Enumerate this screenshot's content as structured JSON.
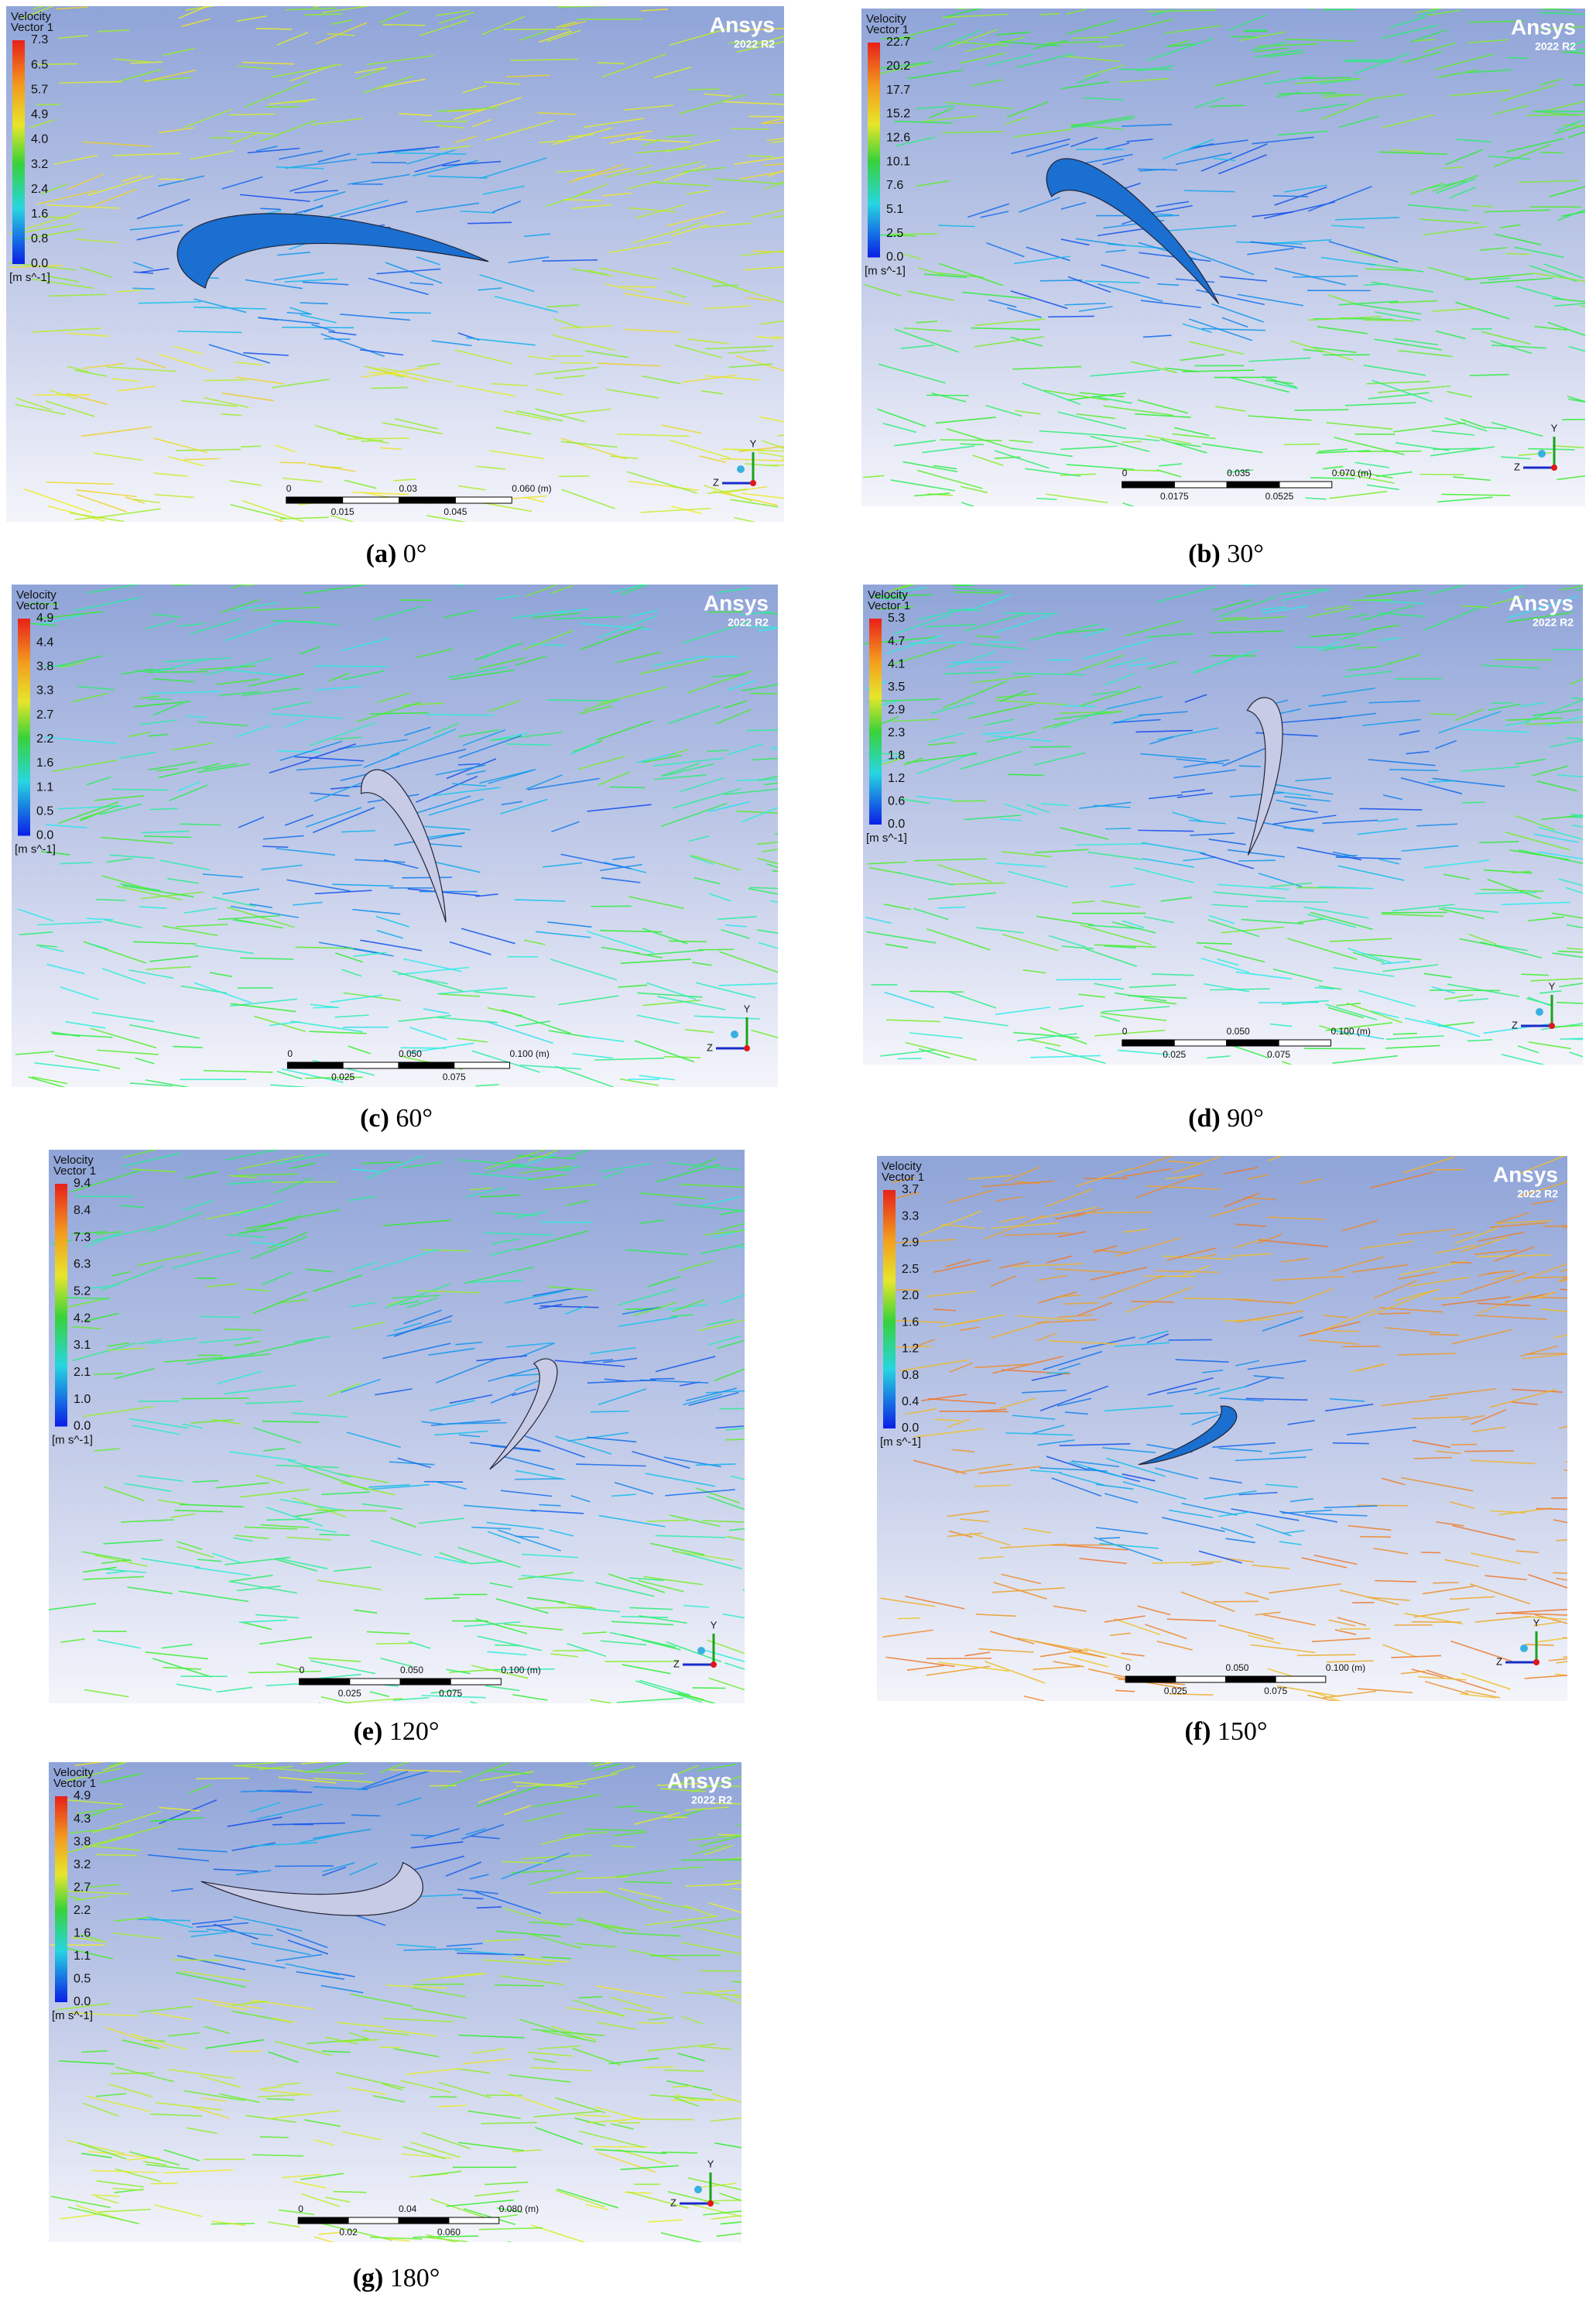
{
  "panels": [
    {
      "legend": {
        "title": "Velocity",
        "subtitle": "Vector 1",
        "ticks": [
          "7.3",
          "6.5",
          "5.7",
          "4.9",
          "4.0",
          "3.2",
          "2.4",
          "1.6",
          "0.8",
          "0.0"
        ],
        "unit": "[m s^-1]"
      },
      "logo": {
        "name": "Ansys",
        "version": "2022 R2"
      },
      "scale": {
        "top": [
          "0",
          "0.03",
          "0.060 (m)"
        ],
        "bottom": [
          "0.015",
          "0.045"
        ]
      },
      "triad": [
        "Y",
        "Z"
      ],
      "caption": {
        "label": "(a)",
        "angle": "0°"
      }
    },
    {
      "legend": {
        "title": "Velocity",
        "subtitle": "Vector 1",
        "ticks": [
          "22.7",
          "20.2",
          "17.7",
          "15.2",
          "12.6",
          "10.1",
          "7.6",
          "5.1",
          "2.5",
          "0.0"
        ],
        "unit": "[m s^-1]"
      },
      "logo": {
        "name": "Ansys",
        "version": "2022 R2"
      },
      "scale": {
        "top": [
          "0",
          "0.035",
          "0.070 (m)"
        ],
        "bottom": [
          "0.0175",
          "0.0525"
        ]
      },
      "triad": [
        "Y",
        "Z"
      ],
      "caption": {
        "label": "(b)",
        "angle": "30°"
      }
    },
    {
      "legend": {
        "title": "Velocity",
        "subtitle": "Vector 1",
        "ticks": [
          "4.9",
          "4.4",
          "3.8",
          "3.3",
          "2.7",
          "2.2",
          "1.6",
          "1.1",
          "0.5",
          "0.0"
        ],
        "unit": "[m s^-1]"
      },
      "logo": {
        "name": "Ansys",
        "version": "2022 R2"
      },
      "scale": {
        "top": [
          "0",
          "0.050",
          "0.100 (m)"
        ],
        "bottom": [
          "0.025",
          "0.075"
        ]
      },
      "triad": [
        "Y",
        "Z"
      ],
      "caption": {
        "label": "(c)",
        "angle": "60°"
      }
    },
    {
      "legend": {
        "title": "Velocity",
        "subtitle": "Vector 1",
        "ticks": [
          "5.3",
          "4.7",
          "4.1",
          "3.5",
          "2.9",
          "2.3",
          "1.8",
          "1.2",
          "0.6",
          "0.0"
        ],
        "unit": "[m s^-1]"
      },
      "logo": {
        "name": "Ansys",
        "version": "2022 R2"
      },
      "scale": {
        "top": [
          "0",
          "0.050",
          "0.100 (m)"
        ],
        "bottom": [
          "0.025",
          "0.075"
        ]
      },
      "triad": [
        "Y",
        "Z"
      ],
      "caption": {
        "label": "(d)",
        "angle": "90°"
      }
    },
    {
      "legend": {
        "title": "Velocity",
        "subtitle": "Vector 1",
        "ticks": [
          "9.4",
          "8.4",
          "7.3",
          "6.3",
          "5.2",
          "4.2",
          "3.1",
          "2.1",
          "1.0",
          "0.0"
        ],
        "unit": "[m s^-1]"
      },
      "scale": {
        "top": [
          "0",
          "0.050",
          "0.100 (m)"
        ],
        "bottom": [
          "0.025",
          "0.075"
        ]
      },
      "triad": [
        "Y",
        "Z"
      ],
      "caption": {
        "label": "(e)",
        "angle": "120°"
      }
    },
    {
      "legend": {
        "title": "Velocity",
        "subtitle": "Vector 1",
        "ticks": [
          "3.7",
          "3.3",
          "2.9",
          "2.5",
          "2.0",
          "1.6",
          "1.2",
          "0.8",
          "0.4",
          "0.0"
        ],
        "unit": "[m s^-1]"
      },
      "logo": {
        "name": "Ansys",
        "version": "2022 R2"
      },
      "scale": {
        "top": [
          "0",
          "0.050",
          "0.100 (m)"
        ],
        "bottom": [
          "0.025",
          "0.075"
        ]
      },
      "triad": [
        "Y",
        "Z"
      ],
      "caption": {
        "label": "(f)",
        "angle": "150°"
      }
    },
    {
      "legend": {
        "title": "Velocity",
        "subtitle": "Vector 1",
        "ticks": [
          "4.9",
          "4.3",
          "3.8",
          "3.2",
          "2.7",
          "2.2",
          "1.6",
          "1.1",
          "0.5",
          "0.0"
        ],
        "unit": "[m s^-1]"
      },
      "logo": {
        "name": "Ansys",
        "version": "2022 R2"
      },
      "scale": {
        "top": [
          "0",
          "0.04",
          "0.080 (m)"
        ],
        "bottom": [
          "0.02",
          "0.060"
        ]
      },
      "triad": [
        "Y",
        "Z"
      ],
      "caption": {
        "label": "(g)",
        "angle": "180°"
      }
    }
  ]
}
